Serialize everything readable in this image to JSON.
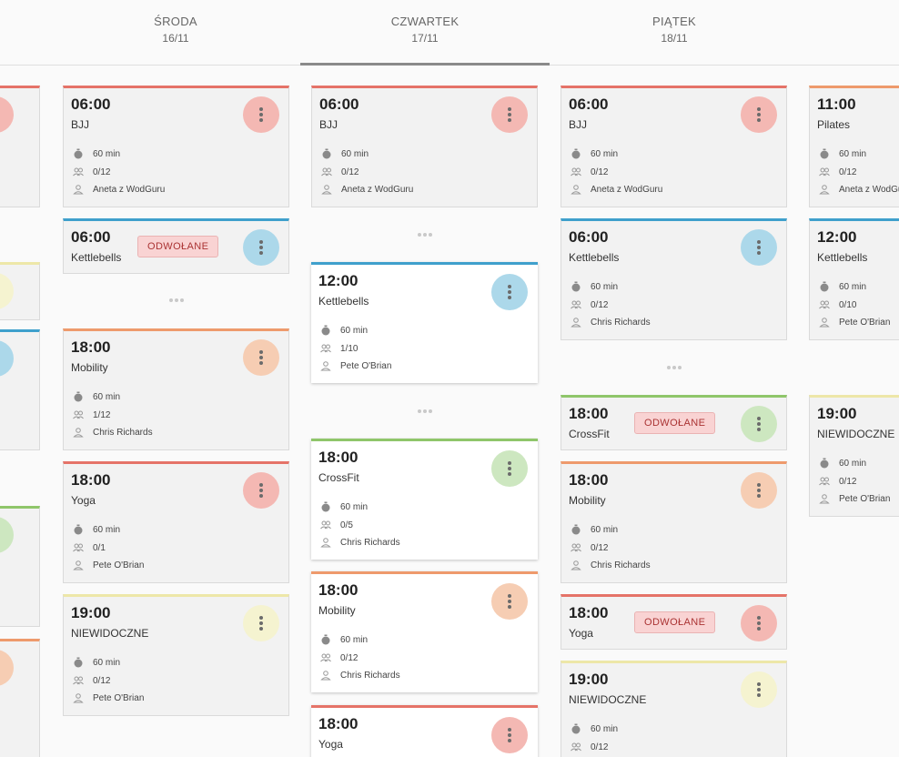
{
  "days": [
    {
      "name": "ŚRODA",
      "date": "16/11"
    },
    {
      "name": "CZWARTEK",
      "date": "17/11"
    },
    {
      "name": "PIĄTEK",
      "date": "18/11"
    }
  ],
  "labels": {
    "cancelled": "ODWOŁANE"
  },
  "cards": {
    "wed1": {
      "time": "06:00",
      "name": "BJJ",
      "duration": "60 min",
      "capacity": "0/12",
      "coach": "Aneta z WodGuru"
    },
    "wed2": {
      "time": "06:00",
      "name": "Kettlebells",
      "cancelled": true
    },
    "wed3": {
      "time": "18:00",
      "name": "Mobility",
      "duration": "60 min",
      "capacity": "1/12",
      "coach": "Chris Richards"
    },
    "wed4": {
      "time": "18:00",
      "name": "Yoga",
      "duration": "60 min",
      "capacity": "0/1",
      "coach": "Pete O'Brian"
    },
    "wed5": {
      "time": "19:00",
      "name": "NIEWIDOCZNE",
      "duration": "60 min",
      "capacity": "0/12",
      "coach": "Pete O'Brian"
    },
    "thu1": {
      "time": "06:00",
      "name": "BJJ",
      "duration": "60 min",
      "capacity": "0/12",
      "coach": "Aneta z WodGuru"
    },
    "thu2": {
      "time": "12:00",
      "name": "Kettlebells",
      "duration": "60 min",
      "capacity": "1/10",
      "coach": "Pete O'Brian"
    },
    "thu3": {
      "time": "18:00",
      "name": "CrossFit",
      "duration": "60 min",
      "capacity": "0/5",
      "coach": "Chris Richards"
    },
    "thu4": {
      "time": "18:00",
      "name": "Mobility",
      "duration": "60 min",
      "capacity": "0/12",
      "coach": "Chris Richards"
    },
    "thu5": {
      "time": "18:00",
      "name": "Yoga"
    },
    "fri1": {
      "time": "06:00",
      "name": "BJJ",
      "duration": "60 min",
      "capacity": "0/12",
      "coach": "Aneta z WodGuru"
    },
    "fri2": {
      "time": "06:00",
      "name": "Kettlebells",
      "duration": "60 min",
      "capacity": "0/12",
      "coach": "Chris Richards"
    },
    "fri3": {
      "time": "18:00",
      "name": "CrossFit",
      "cancelled": true
    },
    "fri4": {
      "time": "18:00",
      "name": "Mobility",
      "duration": "60 min",
      "capacity": "0/12",
      "coach": "Chris Richards"
    },
    "fri5": {
      "time": "18:00",
      "name": "Yoga",
      "cancelled": true
    },
    "fri6": {
      "time": "19:00",
      "name": "NIEWIDOCZNE",
      "duration": "60 min",
      "capacity": "0/12"
    },
    "sat1": {
      "time": "11:00",
      "name": "Pilates",
      "duration": "60 min",
      "capacity": "0/12",
      "coach": "Aneta z WodGuru"
    },
    "sat2": {
      "time": "12:00",
      "name": "Kettlebells",
      "duration": "60 min",
      "capacity": "0/10",
      "coach": "Pete O'Brian"
    },
    "sat3": {
      "time": "19:00",
      "name": "NIEWIDOCZNE",
      "duration": "60 min",
      "capacity": "0/12",
      "coach": "Pete O'Brian"
    }
  }
}
